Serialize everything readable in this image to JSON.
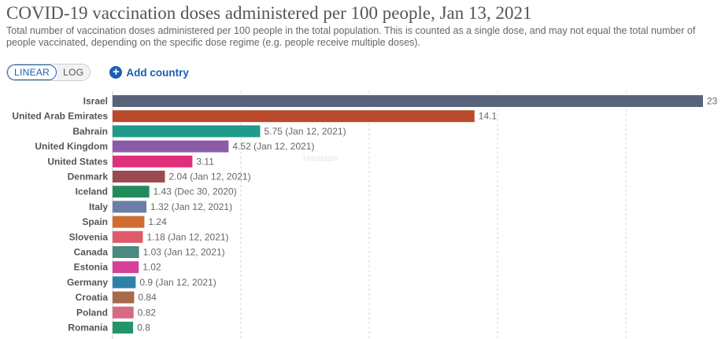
{
  "header": {
    "title": "COVID-19 vaccination doses administered per 100 people, Jan 13, 2021",
    "subtitle": "Total number of vaccination doses administered per 100 people in the total population. This is counted as a single dose, and may not equal the total number of people vaccinated, depending on the specific dose regime (e.g. people receive multiple doses)."
  },
  "controls": {
    "linear_label": "LINEAR",
    "log_label": "LOG",
    "add_country_label": "Add country",
    "add_icon": "plus-circle-icon"
  },
  "watermark": "Hinabian",
  "chart_data": {
    "type": "bar",
    "orientation": "horizontal",
    "title": "COVID-19 vaccination doses administered per 100 people, Jan 13, 2021",
    "xlim": [
      0,
      23
    ],
    "grid": true,
    "rows": [
      {
        "country": "Israel",
        "value": 23,
        "label": "23",
        "color": "#58627a"
      },
      {
        "country": "United Arab Emirates",
        "value": 14.1,
        "label": "14.1",
        "color": "#b94a2c"
      },
      {
        "country": "Bahrain",
        "value": 5.75,
        "label": "5.75 (Jan 12, 2021)",
        "color": "#1e9b8a"
      },
      {
        "country": "United Kingdom",
        "value": 4.52,
        "label": "4.52 (Jan 12, 2021)",
        "color": "#8a5ba8"
      },
      {
        "country": "United States",
        "value": 3.11,
        "label": "3.11",
        "color": "#e0307c"
      },
      {
        "country": "Denmark",
        "value": 2.04,
        "label": "2.04 (Jan 12, 2021)",
        "color": "#9b4a52"
      },
      {
        "country": "Iceland",
        "value": 1.43,
        "label": "1.43 (Dec 30, 2020)",
        "color": "#238a5c"
      },
      {
        "country": "Italy",
        "value": 1.32,
        "label": "1.32 (Jan 12, 2021)",
        "color": "#6d7fa8"
      },
      {
        "country": "Spain",
        "value": 1.24,
        "label": "1.24",
        "color": "#d06e32"
      },
      {
        "country": "Slovenia",
        "value": 1.18,
        "label": "1.18 (Jan 12, 2021)",
        "color": "#e05a6a"
      },
      {
        "country": "Canada",
        "value": 1.03,
        "label": "1.03 (Jan 12, 2021)",
        "color": "#4a8a80"
      },
      {
        "country": "Estonia",
        "value": 1.02,
        "label": "1.02",
        "color": "#d6409a"
      },
      {
        "country": "Germany",
        "value": 0.9,
        "label": "0.9 (Jan 12, 2021)",
        "color": "#2e82a8"
      },
      {
        "country": "Croatia",
        "value": 0.84,
        "label": "0.84",
        "color": "#a8684a"
      },
      {
        "country": "Poland",
        "value": 0.82,
        "label": "0.82",
        "color": "#d66a84"
      },
      {
        "country": "Romania",
        "value": 0.8,
        "label": "0.8",
        "color": "#22956a"
      }
    ]
  }
}
